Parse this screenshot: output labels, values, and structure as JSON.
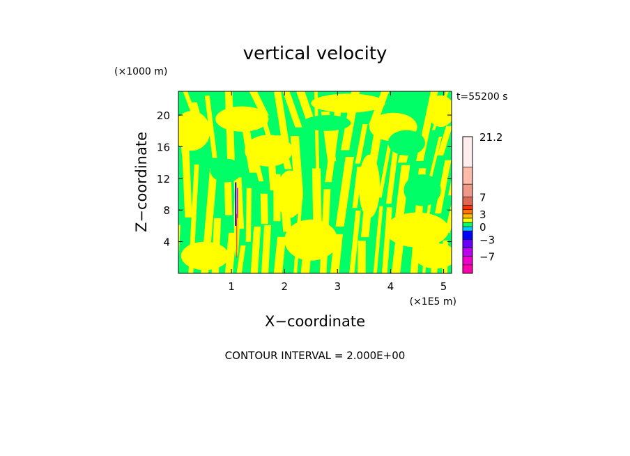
{
  "chart_data": {
    "type": "heatmap",
    "title": "vertical velocity",
    "xlabel": "X−coordinate",
    "ylabel": "Z−coordinate",
    "x_multiplier": "(×1E5 m)",
    "y_multiplier": "(×1000 m)",
    "time_label": "t=55200 s",
    "contour_note": "CONTOUR INTERVAL = 2.000E+00",
    "xlim": [
      0,
      5.15
    ],
    "ylim": [
      0,
      23
    ],
    "x_ticks": [
      {
        "value": 1,
        "label": "1"
      },
      {
        "value": 2,
        "label": "2"
      },
      {
        "value": 3,
        "label": "3"
      },
      {
        "value": 4,
        "label": "4"
      },
      {
        "value": 5,
        "label": "5"
      }
    ],
    "y_ticks": [
      {
        "value": 4,
        "label": "4"
      },
      {
        "value": 8,
        "label": "8"
      },
      {
        "value": 12,
        "label": "12"
      },
      {
        "value": 16,
        "label": "16"
      },
      {
        "value": 20,
        "label": "20"
      }
    ],
    "colorbar": {
      "vmin": -11,
      "vmax": 21.2,
      "bands": [
        {
          "from": -11,
          "to": -9,
          "color": "#ff00aa"
        },
        {
          "from": -9,
          "to": -7,
          "color": "#ee00cc"
        },
        {
          "from": -7,
          "to": -5,
          "color": "#bb00ee"
        },
        {
          "from": -5,
          "to": -3,
          "color": "#6600ff"
        },
        {
          "from": -3,
          "to": -1,
          "color": "#0000ff"
        },
        {
          "from": -1,
          "to": 0,
          "color": "#00ccff"
        },
        {
          "from": 0,
          "to": 1,
          "color": "#00ff66"
        },
        {
          "from": 1,
          "to": 2,
          "color": "#ffff00"
        },
        {
          "from": 2,
          "to": 3,
          "color": "#ffbb00"
        },
        {
          "from": 3,
          "to": 4,
          "color": "#ff7700"
        },
        {
          "from": 4,
          "to": 5,
          "color": "#ff3300"
        },
        {
          "from": 5,
          "to": 7,
          "color": "#dd6655"
        },
        {
          "from": 7,
          "to": 10,
          "color": "#ee9988"
        },
        {
          "from": 10,
          "to": 14,
          "color": "#ffbbaa"
        },
        {
          "from": 14,
          "to": 21.2,
          "color": "#ffeeee"
        }
      ],
      "labels": [
        {
          "value": 21.2,
          "label": "21.2"
        },
        {
          "value": 7,
          "label": "7"
        },
        {
          "value": 3,
          "label": "3"
        },
        {
          "value": 0,
          "label": "0"
        },
        {
          "value": -3,
          "label": "−3"
        },
        {
          "value": -7,
          "label": "−7"
        }
      ]
    },
    "field": {
      "background_color": "#00ff66",
      "positive_color": "#ffff00",
      "description_values": "alternating weak positive (yellow, 0 to 2) and weak negative/near-zero (green) vertical velocity bands, tilted, with a narrow strong updraft/downdraft column near x = 1.1"
    },
    "updraft_column": {
      "x_center": 1.1,
      "z_bottom": 2,
      "z_top": 11.5,
      "colors": [
        "#0000ff",
        "#bb00ee",
        "#ff3300",
        "#ffbb00"
      ]
    }
  }
}
